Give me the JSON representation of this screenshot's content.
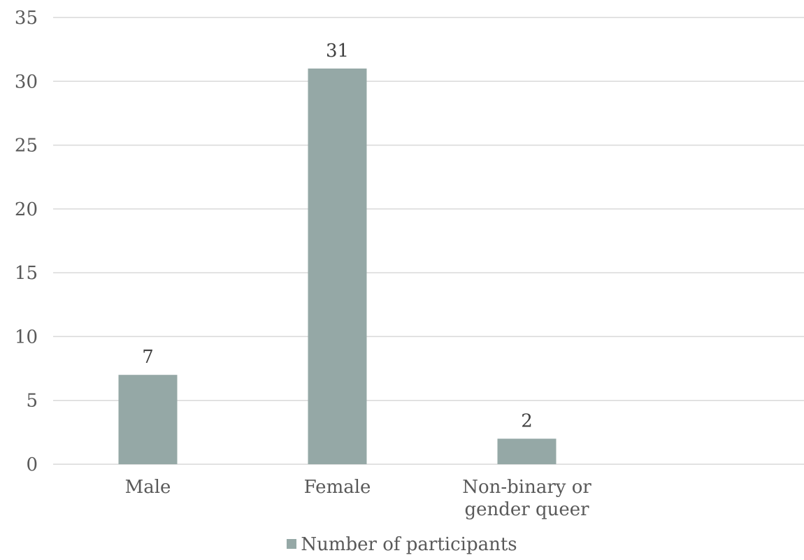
{
  "chart_data": {
    "type": "bar",
    "categories": [
      "Male",
      "Female",
      "Non-binary or gender queer"
    ],
    "category_lines": [
      [
        "Male"
      ],
      [
        "Female"
      ],
      [
        "Non-binary or",
        "gender queer"
      ]
    ],
    "series": [
      {
        "name": "Number of participants",
        "values": [
          7,
          31,
          2
        ],
        "color": "#95a8a6"
      }
    ],
    "ylim": [
      0,
      35
    ],
    "yticks": [
      0,
      5,
      10,
      15,
      20,
      25,
      30,
      35
    ],
    "grid": true,
    "data_labels": true,
    "legend_position": "bottom"
  },
  "legend": {
    "label": "Number of participants",
    "color": "#95a8a6"
  }
}
